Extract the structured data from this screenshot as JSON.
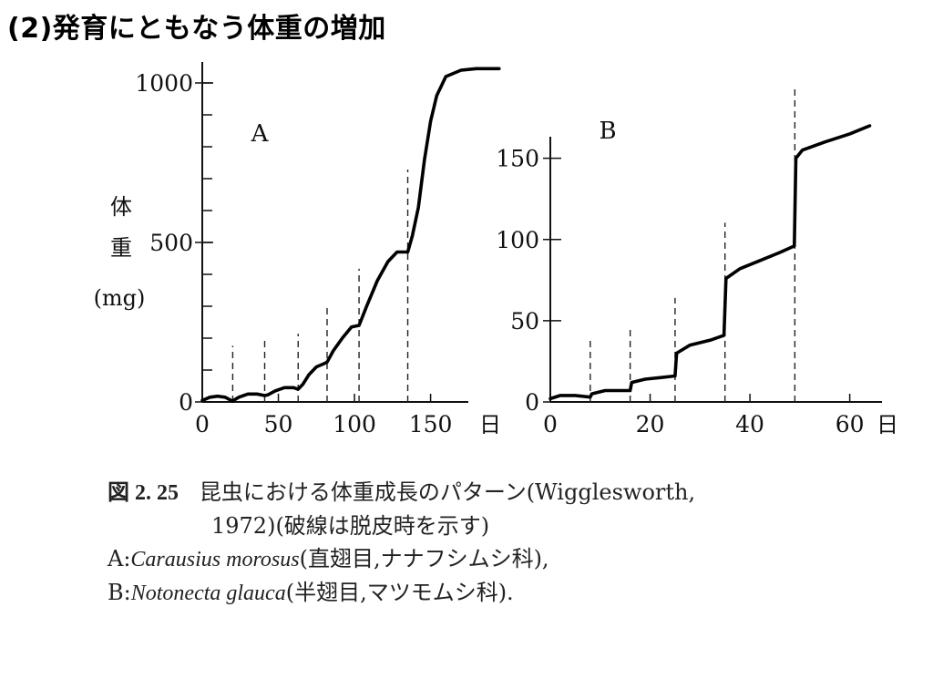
{
  "slide": {
    "title": "(2)発育にともなう体重の増加"
  },
  "chart_data": [
    {
      "type": "line",
      "panel_label": "A",
      "ylabel": [
        "体",
        "重",
        "(mg)"
      ],
      "x_unit": "日",
      "xlim": [
        0,
        170
      ],
      "ylim": [
        0,
        1000
      ],
      "x_ticks": [
        0,
        50,
        100,
        150
      ],
      "y_tick_labels": [
        0,
        500,
        1000
      ],
      "minor_y_step": 100,
      "molts": [
        20,
        41,
        63,
        82,
        103,
        135
      ],
      "series": [
        {
          "x": [
            0,
            5,
            10,
            15,
            19,
            20,
            24,
            30,
            36,
            41,
            43,
            48,
            54,
            60,
            63,
            66,
            70,
            75,
            80,
            82,
            86,
            92,
            98,
            103,
            108,
            115,
            122,
            128,
            135,
            138,
            142,
            146,
            150,
            154,
            160,
            170,
            180,
            195
          ],
          "y": [
            5,
            15,
            18,
            15,
            5,
            3,
            15,
            25,
            25,
            20,
            22,
            35,
            45,
            45,
            40,
            55,
            85,
            110,
            120,
            125,
            160,
            200,
            235,
            240,
            300,
            380,
            440,
            470,
            470,
            520,
            610,
            760,
            880,
            960,
            1020,
            1040,
            1045,
            1045
          ]
        }
      ]
    },
    {
      "type": "line",
      "panel_label": "B",
      "x_unit": "日",
      "xlim": [
        0,
        65
      ],
      "ylim": [
        0,
        170
      ],
      "x_ticks": [
        0,
        20,
        40,
        60
      ],
      "y_tick_labels": [
        0,
        50,
        100,
        150
      ],
      "molts": [
        8,
        16,
        25,
        35,
        49
      ],
      "series": [
        {
          "x": [
            0,
            2,
            5,
            8,
            8.3,
            11,
            14,
            16,
            16.3,
            19,
            22,
            25,
            25.3,
            28,
            32,
            34.8,
            35.2,
            38,
            42,
            46,
            48.9,
            49.2,
            50.5,
            55,
            60,
            64
          ],
          "y": [
            2,
            4,
            4,
            3,
            5,
            7,
            7,
            7,
            12,
            14,
            15,
            16,
            30,
            35,
            38,
            41,
            76,
            82,
            87,
            92,
            96,
            150,
            155,
            160,
            165,
            170
          ]
        }
      ]
    }
  ],
  "caption": {
    "figure_no": "図 2. 25",
    "line1": "昆虫における体重成長のパターン(Wigglesworth,",
    "line2": "1972)(破線は脱皮時を示す)",
    "a_prefix": "A:",
    "a_species": "Carausius morosus",
    "a_note": "(直翅目,ナナフシムシ科),",
    "b_prefix": "B:",
    "b_species": "Notonecta glauca",
    "b_note": "(半翅目,マツモムシ科)."
  }
}
